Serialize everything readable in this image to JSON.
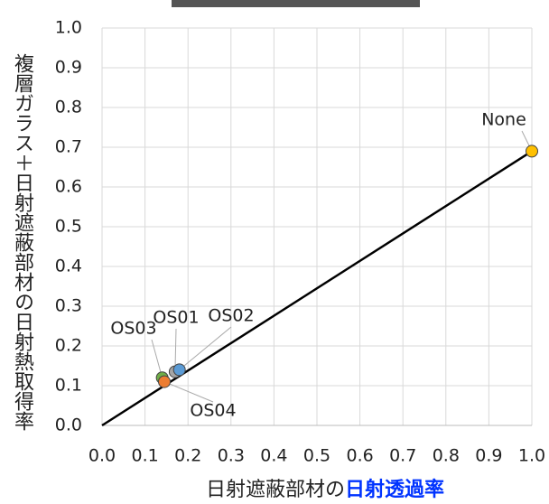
{
  "chart_data": {
    "type": "scatter",
    "xlabel": [
      "日射遮蔽部材の",
      "日射透過率"
    ],
    "ylabel": "複層ガラス＋日射遮蔽部材の日射熱取得率",
    "xlim": [
      0,
      1
    ],
    "ylim": [
      0,
      1
    ],
    "xticks": [
      {
        "value": 0,
        "label": "0.0"
      },
      {
        "value": 0.1,
        "label": "0.1"
      },
      {
        "value": 0.2,
        "label": "0.2"
      },
      {
        "value": 0.3,
        "label": "0.3"
      },
      {
        "value": 0.4,
        "label": "0.4"
      },
      {
        "value": 0.5,
        "label": "0.5"
      },
      {
        "value": 0.6,
        "label": "0.6"
      },
      {
        "value": 0.7,
        "label": "0.7"
      },
      {
        "value": 0.8,
        "label": "0.8"
      },
      {
        "value": 0.9,
        "label": "0.9"
      },
      {
        "value": 1,
        "label": "1.0"
      }
    ],
    "yticks": [
      {
        "value": 0,
        "label": "0.0"
      },
      {
        "value": 0.1,
        "label": "0.1"
      },
      {
        "value": 0.2,
        "label": "0.2"
      },
      {
        "value": 0.3,
        "label": "0.3"
      },
      {
        "value": 0.4,
        "label": "0.4"
      },
      {
        "value": 0.5,
        "label": "0.5"
      },
      {
        "value": 0.6,
        "label": "0.6"
      },
      {
        "value": 0.7,
        "label": "0.7"
      },
      {
        "value": 0.8,
        "label": "0.8"
      },
      {
        "value": 0.9,
        "label": "0.9"
      },
      {
        "value": 1,
        "label": "1.0"
      }
    ],
    "grid": true,
    "points": [
      {
        "name": "None",
        "x": 1.0,
        "y": 0.69,
        "color": "#ffc000"
      },
      {
        "name": "OS01",
        "x": 0.17,
        "y": 0.135,
        "color": "#a5a5a5"
      },
      {
        "name": "OS02",
        "x": 0.18,
        "y": 0.14,
        "color": "#5b9bd5"
      },
      {
        "name": "OS03",
        "x": 0.14,
        "y": 0.12,
        "color": "#70ad47"
      },
      {
        "name": "OS04",
        "x": 0.145,
        "y": 0.11,
        "color": "#ed7d31"
      }
    ],
    "trendline": {
      "x": [
        0,
        1
      ],
      "values": [
        0,
        0.69
      ],
      "color": "#000000"
    }
  }
}
